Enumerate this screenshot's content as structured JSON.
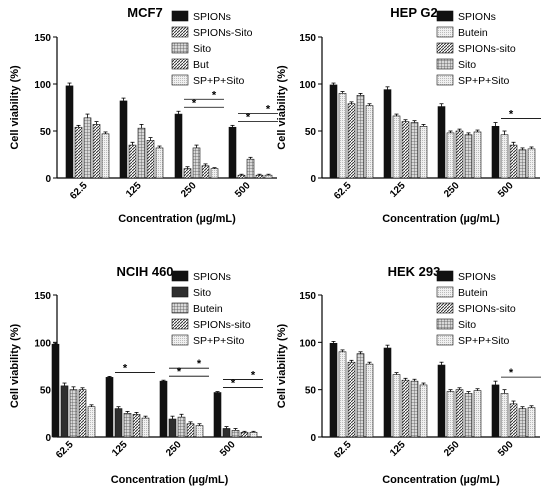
{
  "chart_data": [
    {
      "type": "bar",
      "title": "MCF7",
      "xlabel": "Concentration (µg/mL)",
      "ylabel": "Cell viability (%)",
      "ylim": [
        0,
        150
      ],
      "yticks": [
        0,
        50,
        100,
        150
      ],
      "legend": "top-right",
      "categories": [
        "62.5",
        "125",
        "250",
        "500"
      ],
      "series": [
        {
          "name": "SPIONs",
          "pattern": "solid",
          "values": [
            98,
            82,
            68,
            54
          ],
          "errors": [
            3,
            3,
            3,
            2
          ]
        },
        {
          "name": "SPIONs-Sito",
          "pattern": "hatch",
          "values": [
            54,
            35,
            10,
            3
          ],
          "errors": [
            2,
            3,
            2,
            1
          ]
        },
        {
          "name": "Sito",
          "pattern": "grid",
          "values": [
            64,
            53,
            32,
            20
          ],
          "errors": [
            4,
            4,
            3,
            2
          ]
        },
        {
          "name": "But",
          "pattern": "hatch",
          "values": [
            57,
            40,
            13,
            3
          ],
          "errors": [
            3,
            3,
            2,
            1
          ]
        },
        {
          "name": "SP+P+Sito",
          "pattern": "light",
          "values": [
            47,
            32,
            10,
            3
          ],
          "errors": [
            2,
            2,
            1,
            1
          ]
        }
      ],
      "annotations": [
        {
          "text": "*",
          "category": "250"
        },
        {
          "text": "*",
          "category": "250"
        },
        {
          "text": "*",
          "category": "500"
        },
        {
          "text": "*",
          "category": "500"
        }
      ]
    },
    {
      "type": "bar",
      "title": "HEP G2",
      "xlabel": "Concentration (µg/mL)",
      "ylabel": "Cell viability (%)",
      "ylim": [
        0,
        150
      ],
      "yticks": [
        0,
        50,
        100,
        150
      ],
      "legend": "top-right",
      "categories": [
        "62.5",
        "125",
        "250",
        "500"
      ],
      "series": [
        {
          "name": "SPIONs",
          "pattern": "solid",
          "values": [
            99,
            94,
            76,
            55
          ],
          "errors": [
            2,
            3,
            3,
            4
          ]
        },
        {
          "name": "Butein",
          "pattern": "light",
          "values": [
            90,
            66,
            48,
            46
          ],
          "errors": [
            2,
            2,
            2,
            4
          ]
        },
        {
          "name": "SPIONs-sito",
          "pattern": "hatch",
          "values": [
            79,
            60,
            50,
            35
          ],
          "errors": [
            2,
            2,
            2,
            3
          ]
        },
        {
          "name": "Sito",
          "pattern": "grid",
          "values": [
            88,
            59,
            46,
            30
          ],
          "errors": [
            2,
            2,
            2,
            2
          ]
        },
        {
          "name": "SP+P+Sito",
          "pattern": "light",
          "values": [
            77,
            55,
            49,
            31
          ],
          "errors": [
            2,
            2,
            2,
            2
          ]
        }
      ],
      "annotations": [
        {
          "text": "*",
          "category": "500"
        }
      ]
    },
    {
      "type": "bar",
      "title": "NCIH 460",
      "xlabel": "Concentration (µg/mL)",
      "ylabel": "Cell viability (%)",
      "ylim": [
        0,
        150
      ],
      "yticks": [
        0,
        50,
        100,
        150
      ],
      "legend": "top-right",
      "categories": [
        "62.5",
        "125",
        "250",
        "500"
      ],
      "series": [
        {
          "name": "SPIONs",
          "pattern": "solid",
          "values": [
            98,
            63,
            59,
            47
          ],
          "errors": [
            1,
            1,
            1,
            1
          ]
        },
        {
          "name": "Sito",
          "pattern": "dark",
          "values": [
            54,
            30,
            19,
            9
          ],
          "errors": [
            3,
            2,
            3,
            2
          ]
        },
        {
          "name": "Butein",
          "pattern": "grid",
          "values": [
            50,
            25,
            21,
            7
          ],
          "errors": [
            3,
            2,
            3,
            2
          ]
        },
        {
          "name": "SPIONs-sito",
          "pattern": "hatch",
          "values": [
            50,
            24,
            14,
            5
          ],
          "errors": [
            2,
            2,
            2,
            1
          ]
        },
        {
          "name": "SP+P+Sito",
          "pattern": "light",
          "values": [
            32,
            20,
            12,
            5
          ],
          "errors": [
            2,
            2,
            2,
            1
          ]
        }
      ],
      "annotations": [
        {
          "text": "*",
          "category": "125"
        },
        {
          "text": "*",
          "category": "250"
        },
        {
          "text": "*",
          "category": "250"
        },
        {
          "text": "*",
          "category": "500"
        },
        {
          "text": "*",
          "category": "500"
        }
      ]
    },
    {
      "type": "bar",
      "title": "HEK 293",
      "xlabel": "Concentration (µg/mL)",
      "ylabel": "Cell viability (%)",
      "ylim": [
        0,
        150
      ],
      "yticks": [
        0,
        50,
        100,
        150
      ],
      "legend": "top-right",
      "categories": [
        "62.5",
        "125",
        "250",
        "500"
      ],
      "series": [
        {
          "name": "SPIONs",
          "pattern": "solid",
          "values": [
            99,
            94,
            76,
            55
          ],
          "errors": [
            2,
            3,
            3,
            4
          ]
        },
        {
          "name": "Butein",
          "pattern": "light",
          "values": [
            90,
            66,
            48,
            46
          ],
          "errors": [
            2,
            2,
            2,
            4
          ]
        },
        {
          "name": "SPIONs-sito",
          "pattern": "hatch",
          "values": [
            79,
            60,
            50,
            35
          ],
          "errors": [
            2,
            2,
            2,
            3
          ]
        },
        {
          "name": "Sito",
          "pattern": "grid",
          "values": [
            88,
            59,
            46,
            30
          ],
          "errors": [
            2,
            2,
            2,
            2
          ]
        },
        {
          "name": "SP+P+Sito",
          "pattern": "light",
          "values": [
            77,
            55,
            49,
            31
          ],
          "errors": [
            2,
            2,
            2,
            2
          ]
        }
      ],
      "annotations": [
        {
          "text": "*",
          "category": "500"
        }
      ]
    }
  ]
}
